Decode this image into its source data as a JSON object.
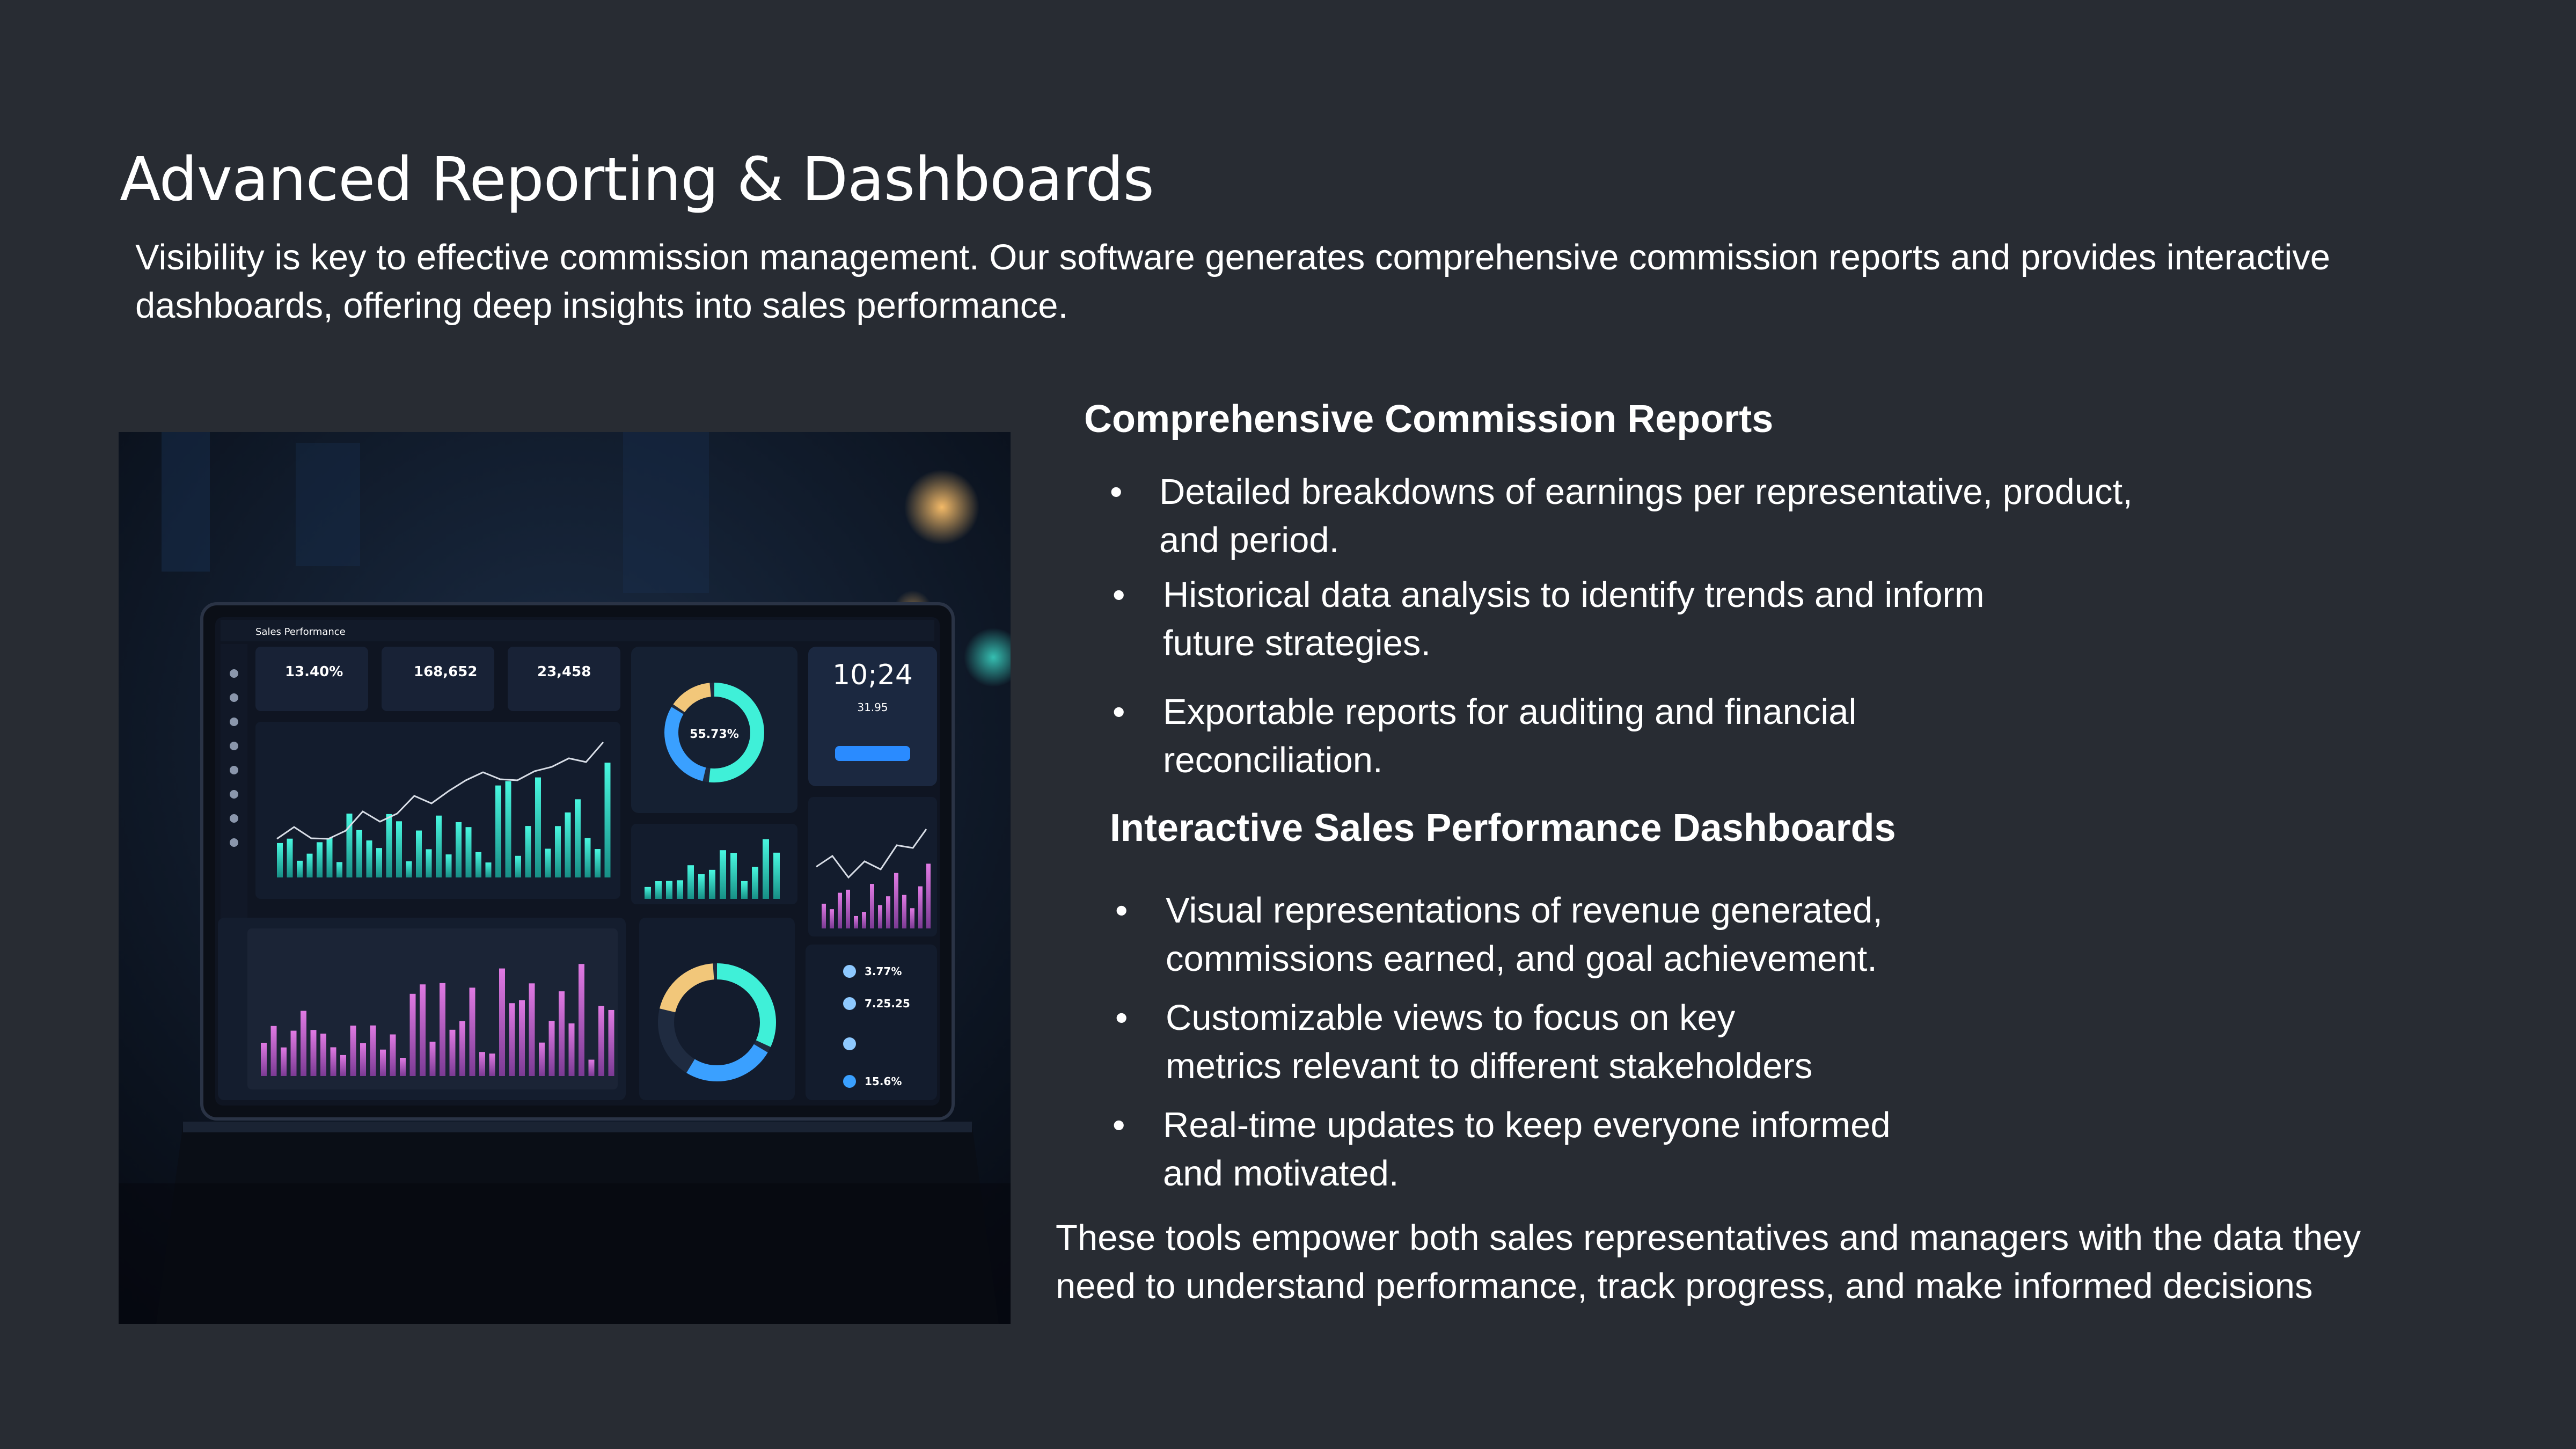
{
  "slide": {
    "title": "Advanced Reporting & Dashboards",
    "intro": "Visibility is key to effective commission management. Our software generates comprehensive commission reports and provides interactive dashboards, offering deep insights into sales performance."
  },
  "section1": {
    "heading": "Comprehensive Commission Reports",
    "bullets": [
      {
        "line1": "Detailed breakdowns of earnings per representative, product,",
        "line2": "and period."
      },
      {
        "line1": "Historical data analysis to identify trends and inform",
        "line2": "future strategies."
      },
      {
        "line1": "Exportable reports for auditing and financial",
        "line2": "reconciliation."
      }
    ]
  },
  "section2": {
    "heading": "Interactive Sales Performance Dashboards",
    "bullets": [
      {
        "line1": "Visual representations of revenue generated,",
        "line2": "commissions earned, and goal achievement."
      },
      {
        "line1": "Customizable views to focus on key",
        "line2": "metrics relevant to different stakeholders"
      },
      {
        "line1": "Real-time updates to keep everyone informed",
        "line2": "and motivated."
      }
    ]
  },
  "closing": "These tools empower both sales representatives and managers with the data they need to understand performance, track progress, and make informed decisions",
  "photo": {
    "app_title": "Sales Performance",
    "kpis": [
      {
        "value": "13.40%"
      },
      {
        "value": "168,652"
      },
      {
        "value": "23,458"
      }
    ],
    "donut_value": "55.73%",
    "clock": "10;24",
    "clock_sub": "31.95",
    "list_values": [
      "3.77%",
      "7.25.25",
      "15.6%"
    ]
  },
  "colors": {
    "background": "#282c33",
    "text": "#ffffff",
    "accent_teal": "#3ff0d8",
    "accent_pink": "#c95fd0",
    "accent_blue": "#3aa0ff",
    "accent_yellow": "#f2c77a"
  }
}
